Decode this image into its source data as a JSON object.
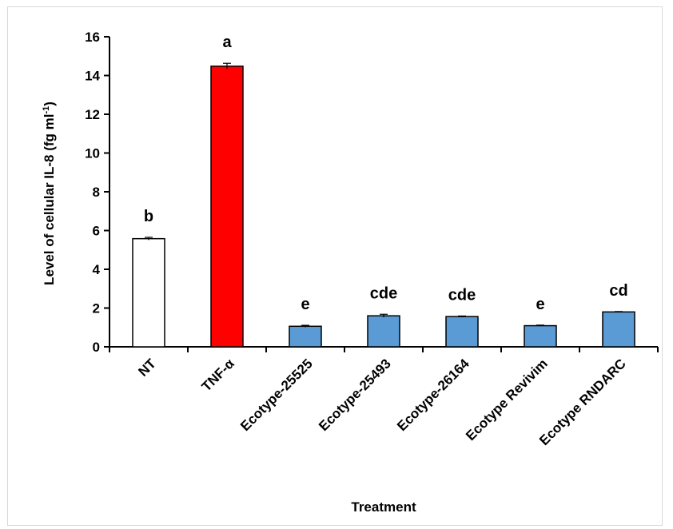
{
  "chart_data": {
    "type": "bar",
    "categories": [
      "NT",
      "TNF-α",
      "Ecotype-25525",
      "Ecotype-25493",
      "Ecotype-26164",
      "Ecotype Revivim",
      "Ecotype RNDARC"
    ],
    "values": [
      5.58,
      14.48,
      1.06,
      1.6,
      1.56,
      1.09,
      1.8
    ],
    "errors": [
      0.07,
      0.15,
      0.05,
      0.08,
      0.03,
      0.03,
      0.02
    ],
    "significance": [
      "b",
      "a",
      "e",
      "cde",
      "cde",
      "e",
      "cd"
    ],
    "colors": [
      "#ffffff",
      "#ff0000",
      "#5b9bd5",
      "#5b9bd5",
      "#5b9bd5",
      "#5b9bd5",
      "#5b9bd5"
    ],
    "xlabel": "Treatment",
    "ylabel": {
      "main": "Level of cellular IL-8 (fg ml",
      "sup": "-1",
      "end": ")"
    },
    "ylim": [
      0,
      16
    ],
    "yticks": [
      0,
      2,
      4,
      6,
      8,
      10,
      12,
      14,
      16
    ],
    "grid": false
  }
}
